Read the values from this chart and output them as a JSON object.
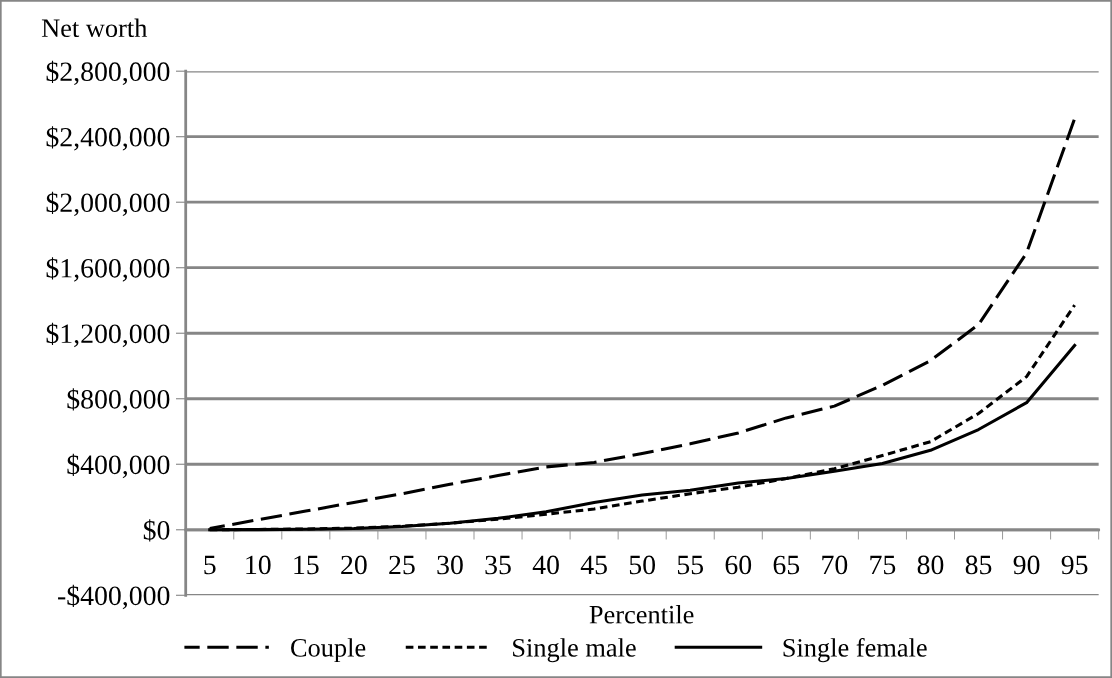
{
  "chart_data": {
    "type": "line",
    "xlabel": "Percentile",
    "ylabel": "Net worth",
    "categories": [
      "5",
      "10",
      "15",
      "20",
      "25",
      "30",
      "35",
      "40",
      "45",
      "50",
      "55",
      "60",
      "65",
      "70",
      "75",
      "80",
      "85",
      "90",
      "95"
    ],
    "series": [
      {
        "name": "Couple",
        "color": "#000000",
        "line_style": "dashed",
        "values": [
          8000,
          61000,
          114000,
          167000,
          220000,
          278000,
          331000,
          384000,
          411000,
          466000,
          525000,
          591000,
          683000,
          755000,
          882000,
          1033000,
          1253000,
          1690000,
          2510000
        ]
      },
      {
        "name": "Single male",
        "color": "#000000",
        "line_style": "dotted",
        "values": [
          0,
          2000,
          5000,
          10000,
          22000,
          40000,
          65000,
          95000,
          127000,
          175000,
          220000,
          260000,
          313000,
          373000,
          453000,
          538000,
          710000,
          935000,
          1372000
        ]
      },
      {
        "name": "Single female",
        "color": "#000000",
        "line_style": "solid",
        "values": [
          0,
          1000,
          3000,
          8000,
          20000,
          40000,
          70000,
          110000,
          167000,
          212000,
          241000,
          286000,
          313000,
          358000,
          405000,
          485000,
          612000,
          776000,
          1126000
        ]
      }
    ],
    "ylim": [
      -400000,
      2800000
    ],
    "yticks": [
      {
        "value": -400000,
        "label": "-$400,000"
      },
      {
        "value": 0,
        "label": "$0"
      },
      {
        "value": 400000,
        "label": "$400,000"
      },
      {
        "value": 800000,
        "label": "$800,000"
      },
      {
        "value": 1200000,
        "label": "$1,200,000"
      },
      {
        "value": 1600000,
        "label": "$1,600,000"
      },
      {
        "value": 2000000,
        "label": "$2,000,000"
      },
      {
        "value": 2400000,
        "label": "$2,400,000"
      },
      {
        "value": 2800000,
        "label": "$2,800,000"
      }
    ],
    "grid": "y",
    "legend": "bottom",
    "marker": "none"
  }
}
